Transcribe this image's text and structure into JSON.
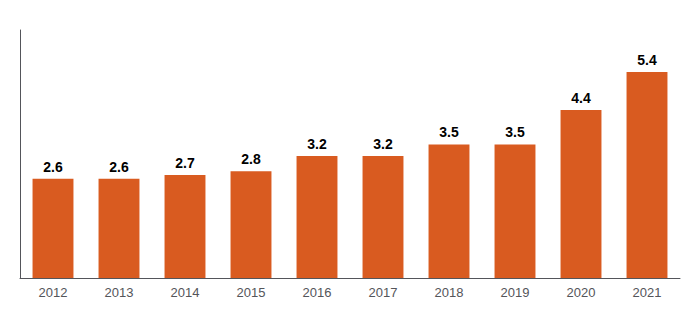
{
  "chart_data": {
    "type": "bar",
    "categories": [
      "2012",
      "2013",
      "2014",
      "2015",
      "2016",
      "2017",
      "2018",
      "2019",
      "2020",
      "2021"
    ],
    "values": [
      2.6,
      2.6,
      2.7,
      2.8,
      3.2,
      3.2,
      3.5,
      3.5,
      4.4,
      5.4
    ],
    "color": "#D95B20",
    "ylim": [
      0,
      6.5
    ],
    "grid": false,
    "data_labels": true,
    "tick_labels": "x"
  }
}
